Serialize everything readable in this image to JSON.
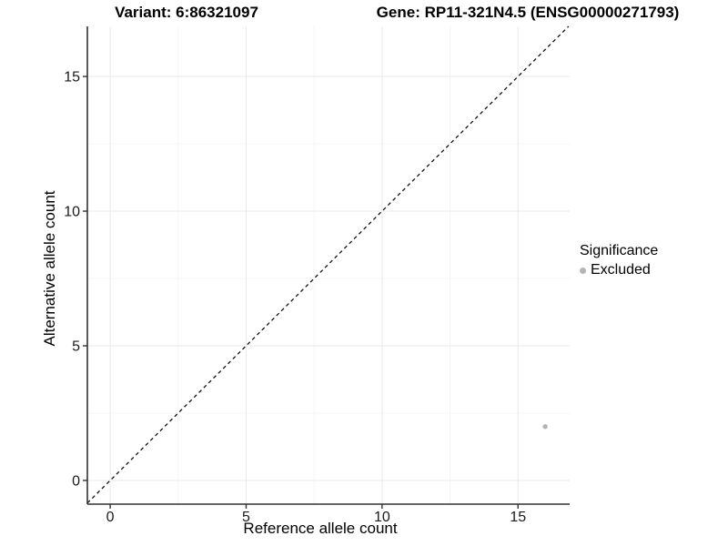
{
  "chart_data": {
    "type": "scatter",
    "title_left": "Variant: 6:86321097",
    "title_right": "Gene: RP11-321N4.5 (ENSG00000271793)",
    "xlabel": "Reference allele count",
    "ylabel": "Alternative allele count",
    "xlim": [
      -0.84,
      16.9
    ],
    "ylim": [
      -0.88,
      16.86
    ],
    "x_breaks": [
      0,
      5,
      10,
      15
    ],
    "y_breaks": [
      0,
      5,
      10,
      15
    ],
    "x_minor_breaks": [
      2.5,
      7.5,
      12.5
    ],
    "y_minor_breaks": [
      2.5,
      7.5,
      12.5
    ],
    "grid": "major+minor, white panel background",
    "identity_line": {
      "slope": 1,
      "intercept": 0,
      "style": "dashed",
      "color": "#111111"
    },
    "points": [
      {
        "x": 16,
        "y": 2,
        "series": "Excluded"
      }
    ],
    "legend": {
      "title": "Significance",
      "position": "right",
      "entries": [
        {
          "label": "Excluded",
          "color": "#b5b5b5"
        }
      ]
    },
    "colors": {
      "point": "#b5b5b5",
      "grid_major": "#e9e9e9",
      "grid_minor": "#f4f4f4",
      "axis_line": "#333333",
      "tick_text": "#1a1a1a"
    }
  }
}
